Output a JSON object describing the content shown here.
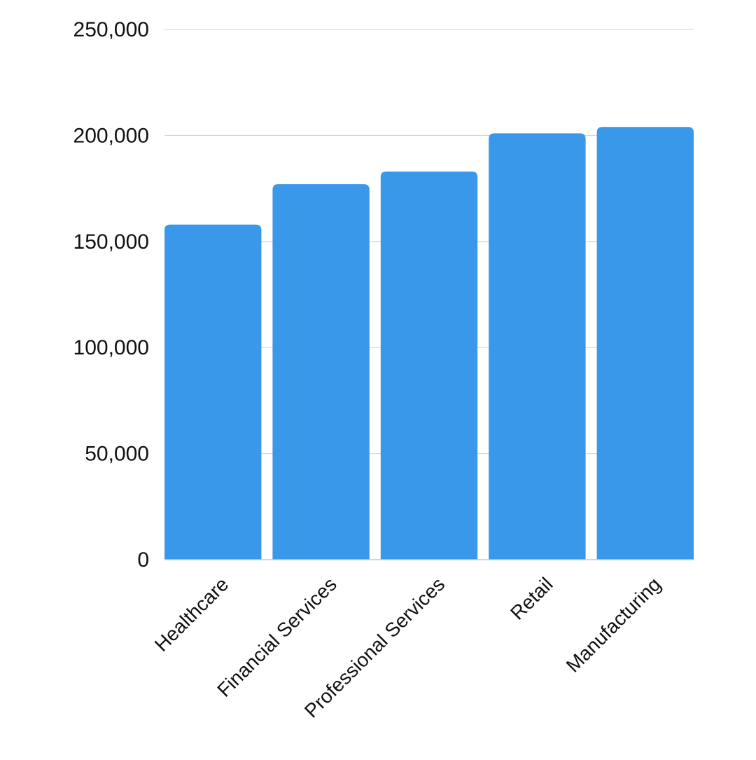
{
  "chart_data": {
    "type": "bar",
    "categories": [
      "Healthcare",
      "Financial Services",
      "Professional Services",
      "Retail",
      "Manufacturing"
    ],
    "values": [
      158000,
      177000,
      183000,
      201000,
      204000
    ],
    "ylim": [
      0,
      250000
    ],
    "yticks": [
      0,
      50000,
      100000,
      150000,
      200000,
      250000
    ],
    "ytick_labels": [
      "0",
      "50,000",
      "100,000",
      "150,000",
      "200,000",
      "250,000"
    ],
    "grid": true,
    "legend": "none",
    "title": "",
    "xlabel": "",
    "ylabel": "",
    "colors": {
      "bar": "#3a98eb",
      "grid": "#d0d0d0",
      "text": "#111111"
    }
  }
}
